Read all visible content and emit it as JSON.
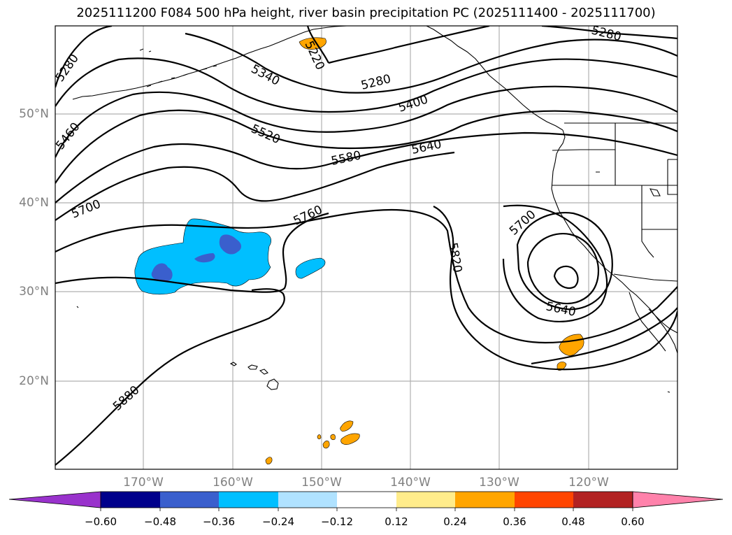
{
  "title": "2025111200 F084 500 hPa height, river basin precipitation PC (2025111400 - 2025111700)",
  "lat_labels": [
    "50°N",
    "40°N",
    "30°N",
    "20°N"
  ],
  "lon_labels": [
    "170°W",
    "160°W",
    "150°W",
    "140°W",
    "130°W",
    "120°W"
  ],
  "contour_labels": [
    "5280",
    "5220",
    "5340",
    "5280",
    "5280",
    "5400",
    "5460",
    "5520",
    "5580",
    "5640",
    "5700",
    "5760",
    "5820",
    "5700",
    "5640",
    "5880"
  ],
  "colorbar": {
    "ticks": [
      "−0.60",
      "−0.48",
      "−0.36",
      "−0.24",
      "−0.12",
      "0.12",
      "0.24",
      "0.36",
      "0.48",
      "0.60"
    ],
    "colors": [
      "#9932CC",
      "#00008B",
      "#3A5FCD",
      "#00BFFF",
      "#B0E2FF",
      "#FFFFFF",
      "#FFEC8B",
      "#FFA500",
      "#FF4500",
      "#B22222",
      "#FF82AB"
    ]
  },
  "field_colors": {
    "coast": "#000000",
    "contour": "#000000",
    "grid": "#b0b0b0",
    "negative_light": "#00BFFF",
    "negative_dark": "#3A5FCD",
    "positive": "#FFA500"
  }
}
